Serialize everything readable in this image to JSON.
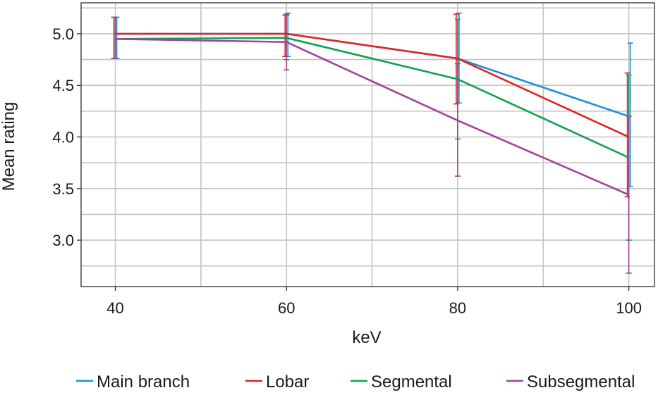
{
  "chart_data": {
    "type": "line",
    "x": [
      40,
      60,
      80,
      100
    ],
    "xlabel": "keV",
    "ylabel": "Mean rating",
    "xlim": [
      36,
      103
    ],
    "ylim": [
      2.55,
      5.3
    ],
    "xticks": [
      40,
      60,
      80,
      100
    ],
    "xtick_labels": [
      "40",
      "60",
      "80",
      "100"
    ],
    "yticks": [
      3.0,
      3.5,
      4.0,
      4.5,
      5.0
    ],
    "ytick_labels": [
      "3.0",
      "3.5",
      "4.0",
      "4.5",
      "5.0"
    ],
    "x_minor_gridlines": [
      50,
      70,
      90
    ],
    "y_minor_gridlines": [
      2.75,
      3.25,
      3.75,
      4.25,
      4.75,
      5.25
    ],
    "grid": true,
    "legend_position": "bottom",
    "series": [
      {
        "name": "Main branch",
        "color": "#1f8fd6",
        "values": [
          5.0,
          5.0,
          4.76,
          4.2
        ],
        "error_low": [
          4.76,
          4.78,
          4.33,
          3.52
        ],
        "error_high": [
          5.16,
          5.2,
          5.2,
          4.91
        ]
      },
      {
        "name": "Lobar",
        "color": "#e02424",
        "values": [
          5.0,
          5.0,
          4.76,
          4.0
        ],
        "error_low": [
          4.76,
          4.78,
          4.32,
          3.42
        ],
        "error_high": [
          5.16,
          5.18,
          5.19,
          4.62
        ]
      },
      {
        "name": "Segmental",
        "color": "#13a150",
        "values": [
          4.95,
          4.96,
          4.56,
          3.8
        ],
        "error_low": [
          4.76,
          4.75,
          3.98,
          3.0
        ],
        "error_high": [
          5.16,
          5.18,
          5.14,
          4.6
        ]
      },
      {
        "name": "Subsegmental",
        "color": "#a0449a",
        "values": [
          4.95,
          4.92,
          4.16,
          3.44
        ],
        "error_low": [
          4.76,
          4.65,
          3.62,
          2.68
        ],
        "error_high": [
          5.16,
          5.19,
          4.71,
          4.2
        ]
      }
    ]
  }
}
